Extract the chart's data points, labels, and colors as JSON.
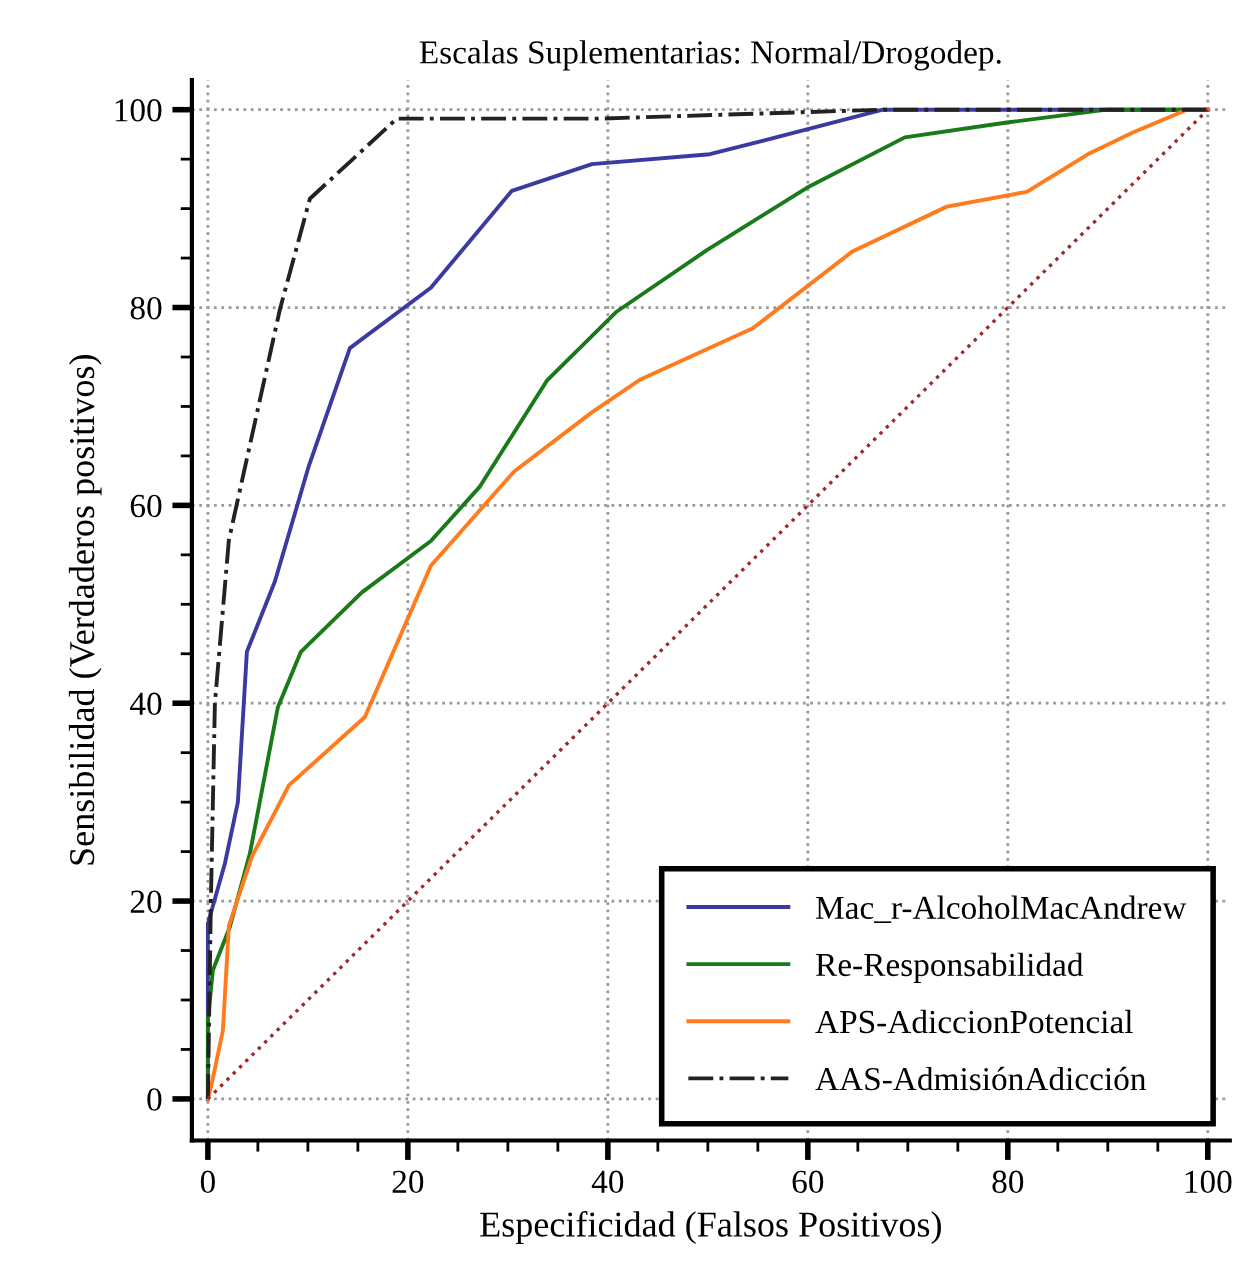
{
  "chart_data": {
    "type": "line",
    "title": "Escalas Suplementarias: Normal/Drogodep.",
    "xlabel": "Especificidad (Falsos Positivos)",
    "ylabel": "Sensibilidad (Verdaderos positivos)",
    "xlim": [
      -1.6,
      102.2
    ],
    "ylim": [
      -4.2,
      103
    ],
    "xticks": [
      0,
      20,
      40,
      60,
      80,
      100
    ],
    "yticks": [
      0,
      20,
      40,
      60,
      80,
      100
    ],
    "grid": true,
    "legend": "bottom right",
    "series": [
      {
        "name": "Mac_r-AlcoholMacAndrew",
        "color": "#3a3aa0",
        "line_style": "solid",
        "x": [
          0,
          0,
          1.7,
          3.0,
          3.9,
          6.7,
          10.1,
          14.2,
          22.3,
          30.4,
          38.4,
          50.2,
          59.9,
          67.5,
          100
        ],
        "values": [
          0,
          17.7,
          23.8,
          30,
          45.2,
          52.3,
          64,
          75.9,
          82,
          91.8,
          94.5,
          95.5,
          98,
          100,
          100
        ]
      },
      {
        "name": "Re-Responsabilidad",
        "color": "#1a7a1a",
        "line_style": "solid",
        "x": [
          0,
          0,
          0.5,
          2.2,
          4.2,
          7,
          9.3,
          15.4,
          22.3,
          27.2,
          33.9,
          40.9,
          49.9,
          59.9,
          69.7,
          79.9,
          89.9,
          100
        ],
        "values": [
          0,
          8,
          13,
          17.4,
          24.8,
          39.6,
          45.2,
          51.2,
          56.4,
          61.9,
          72.6,
          79.6,
          85.8,
          92.1,
          97.2,
          98.7,
          100,
          100
        ]
      },
      {
        "name": "APS-AdiccionPotencial",
        "color": "#ff7b1c",
        "line_style": "solid",
        "x": [
          0,
          0.4,
          1.5,
          2.1,
          4.4,
          8.1,
          15.7,
          22.3,
          30.6,
          38.4,
          43.2,
          54.5,
          64.5,
          73.9,
          81.9,
          88.2,
          92.5,
          97.9,
          100
        ],
        "values": [
          0,
          1.6,
          6.9,
          17.5,
          24.5,
          31.7,
          38.6,
          53.9,
          63.4,
          69.4,
          72.7,
          77.9,
          85.7,
          90.2,
          91.7,
          95.6,
          97.7,
          100,
          100
        ]
      },
      {
        "name": "AAS-AdmisiónAdicción",
        "color": "#222222",
        "line_style": "dashdot",
        "x": [
          0,
          0.3,
          0.7,
          2.1,
          7.2,
          10.2,
          18.9,
          39.2,
          67.5,
          100
        ],
        "values": [
          0,
          20,
          40,
          56.5,
          79.8,
          91,
          99.1,
          99.1,
          100,
          100
        ]
      },
      {
        "color": "#a0282a",
        "line_style": "dotted",
        "x": [
          0,
          100
        ],
        "values": [
          0,
          100
        ]
      }
    ]
  }
}
